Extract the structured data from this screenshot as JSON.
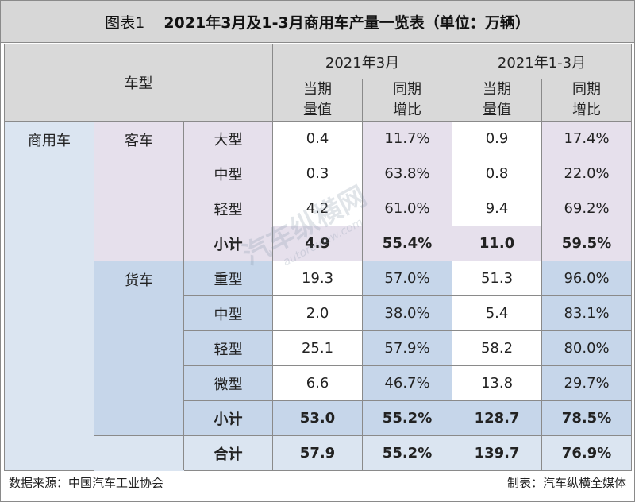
{
  "title": {
    "figure_number": "图表1",
    "text": "2021年3月及1-3月商用车产量一览表（单位：万辆）"
  },
  "table": {
    "header": {
      "vehicle_type": "车型",
      "period_1": "2021年3月",
      "period_2": "2021年1-3月",
      "col_current": "当期\n量值",
      "col_yoy": "同期\n增比"
    },
    "group_label": "商用车",
    "bus": {
      "label": "客车",
      "rows": [
        {
          "type": "大型",
          "m_val": "0.4",
          "m_yoy": "11.7%",
          "q_val": "0.9",
          "q_yoy": "17.4%"
        },
        {
          "type": "中型",
          "m_val": "0.3",
          "m_yoy": "63.8%",
          "q_val": "0.8",
          "q_yoy": "22.0%"
        },
        {
          "type": "轻型",
          "m_val": "4.2",
          "m_yoy": "61.0%",
          "q_val": "9.4",
          "q_yoy": "69.2%"
        }
      ],
      "subtotal": {
        "type": "小计",
        "m_val": "4.9",
        "m_yoy": "55.4%",
        "q_val": "11.0",
        "q_yoy": "59.5%"
      }
    },
    "truck": {
      "label": "货车",
      "rows": [
        {
          "type": "重型",
          "m_val": "19.3",
          "m_yoy": "57.0%",
          "q_val": "51.3",
          "q_yoy": "96.0%"
        },
        {
          "type": "中型",
          "m_val": "2.0",
          "m_yoy": "38.0%",
          "q_val": "5.4",
          "q_yoy": "83.1%"
        },
        {
          "type": "轻型",
          "m_val": "25.1",
          "m_yoy": "57.9%",
          "q_val": "58.2",
          "q_yoy": "80.0%"
        },
        {
          "type": "微型",
          "m_val": "6.6",
          "m_yoy": "46.7%",
          "q_val": "13.8",
          "q_yoy": "29.7%"
        }
      ],
      "subtotal": {
        "type": "小计",
        "m_val": "53.0",
        "m_yoy": "55.2%",
        "q_val": "128.7",
        "q_yoy": "78.5%"
      }
    },
    "total": {
      "type": "合计",
      "m_val": "57.9",
      "m_yoy": "55.2%",
      "q_val": "139.7",
      "q_yoy": "76.9%"
    }
  },
  "footer": {
    "source": "数据来源：中国汽车工业协会",
    "credit": "制表：汽车纵横全媒体"
  },
  "watermark": {
    "text": "汽车纵横网",
    "url": "autoreview.com"
  },
  "colors": {
    "header_gray": "#d9d9d9",
    "bus_lavender": "#e6e0ec",
    "truck_blue": "#c6d6ea",
    "group_pale_blue": "#dbe5f1"
  }
}
